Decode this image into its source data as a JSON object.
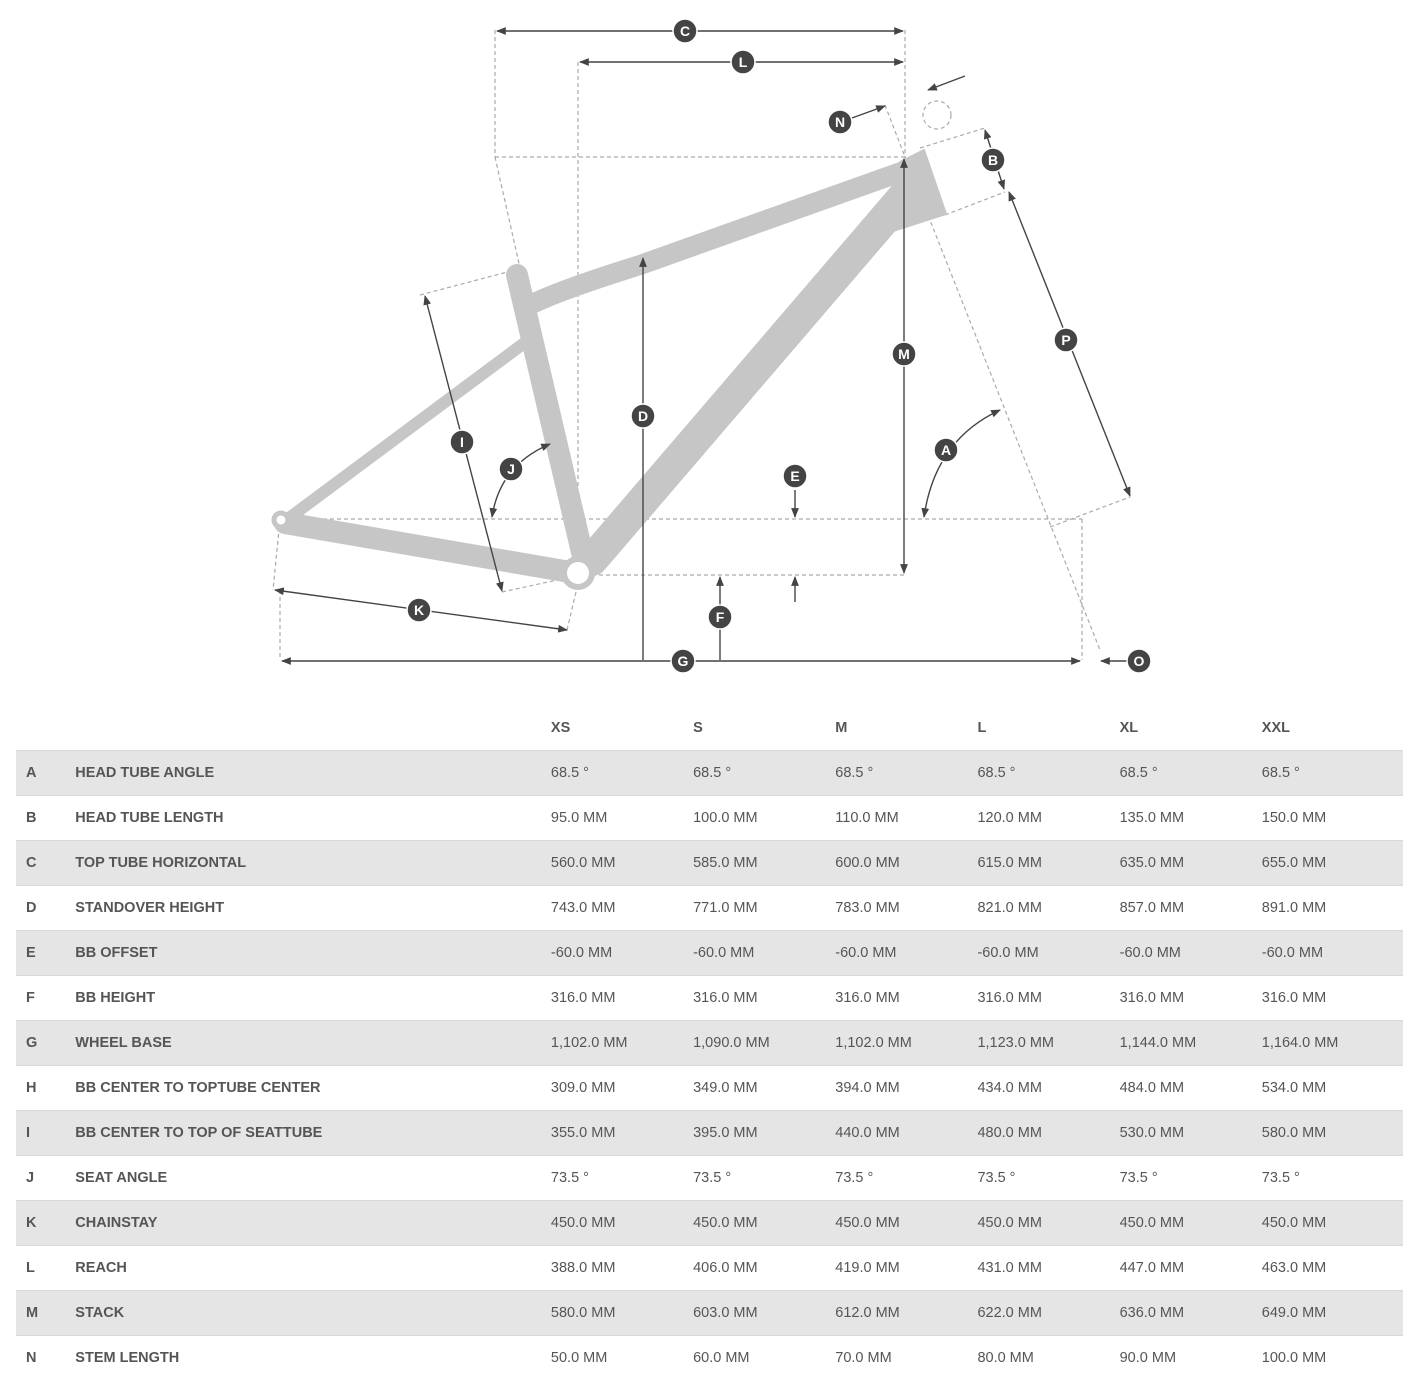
{
  "diagram": {
    "labels": [
      "C",
      "L",
      "N",
      "B",
      "P",
      "M",
      "D",
      "I",
      "J",
      "E",
      "A",
      "F",
      "K",
      "G",
      "O"
    ],
    "frame_color": "#c6c6c6",
    "marker_color": "#444444"
  },
  "table": {
    "sizes": [
      "XS",
      "S",
      "M",
      "L",
      "XL",
      "XXL"
    ],
    "rows": [
      {
        "letter": "A",
        "name": "HEAD TUBE ANGLE",
        "values": [
          "68.5 °",
          "68.5 °",
          "68.5 °",
          "68.5 °",
          "68.5 °",
          "68.5 °"
        ]
      },
      {
        "letter": "B",
        "name": "HEAD TUBE LENGTH",
        "values": [
          "95.0 MM",
          "100.0 MM",
          "110.0 MM",
          "120.0 MM",
          "135.0 MM",
          "150.0 MM"
        ]
      },
      {
        "letter": "C",
        "name": "TOP TUBE HORIZONTAL",
        "values": [
          "560.0 MM",
          "585.0 MM",
          "600.0 MM",
          "615.0 MM",
          "635.0 MM",
          "655.0 MM"
        ]
      },
      {
        "letter": "D",
        "name": "STANDOVER HEIGHT",
        "values": [
          "743.0 MM",
          "771.0 MM",
          "783.0 MM",
          "821.0 MM",
          "857.0 MM",
          "891.0 MM"
        ]
      },
      {
        "letter": "E",
        "name": "BB OFFSET",
        "values": [
          "-60.0 MM",
          "-60.0 MM",
          "-60.0 MM",
          "-60.0 MM",
          "-60.0 MM",
          "-60.0 MM"
        ]
      },
      {
        "letter": "F",
        "name": "BB HEIGHT",
        "values": [
          "316.0 MM",
          "316.0 MM",
          "316.0 MM",
          "316.0 MM",
          "316.0 MM",
          "316.0 MM"
        ]
      },
      {
        "letter": "G",
        "name": "WHEEL BASE",
        "values": [
          "1,102.0 MM",
          "1,090.0 MM",
          "1,102.0 MM",
          "1,123.0 MM",
          "1,144.0 MM",
          "1,164.0 MM"
        ]
      },
      {
        "letter": "H",
        "name": "BB CENTER TO TOPTUBE CENTER",
        "values": [
          "309.0 MM",
          "349.0 MM",
          "394.0 MM",
          "434.0 MM",
          "484.0 MM",
          "534.0 MM"
        ]
      },
      {
        "letter": "I",
        "name": "BB CENTER TO TOP OF SEATTUBE",
        "values": [
          "355.0 MM",
          "395.0 MM",
          "440.0 MM",
          "480.0 MM",
          "530.0 MM",
          "580.0 MM"
        ]
      },
      {
        "letter": "J",
        "name": "SEAT ANGLE",
        "values": [
          "73.5 °",
          "73.5 °",
          "73.5 °",
          "73.5 °",
          "73.5 °",
          "73.5 °"
        ]
      },
      {
        "letter": "K",
        "name": "CHAINSTAY",
        "values": [
          "450.0 MM",
          "450.0 MM",
          "450.0 MM",
          "450.0 MM",
          "450.0 MM",
          "450.0 MM"
        ]
      },
      {
        "letter": "L",
        "name": "REACH",
        "values": [
          "388.0 MM",
          "406.0 MM",
          "419.0 MM",
          "431.0 MM",
          "447.0 MM",
          "463.0 MM"
        ]
      },
      {
        "letter": "M",
        "name": "STACK",
        "values": [
          "580.0 MM",
          "603.0 MM",
          "612.0 MM",
          "622.0 MM",
          "636.0 MM",
          "649.0 MM"
        ]
      },
      {
        "letter": "N",
        "name": "STEM LENGTH",
        "values": [
          "50.0 MM",
          "60.0 MM",
          "70.0 MM",
          "80.0 MM",
          "90.0 MM",
          "100.0 MM"
        ]
      }
    ]
  }
}
